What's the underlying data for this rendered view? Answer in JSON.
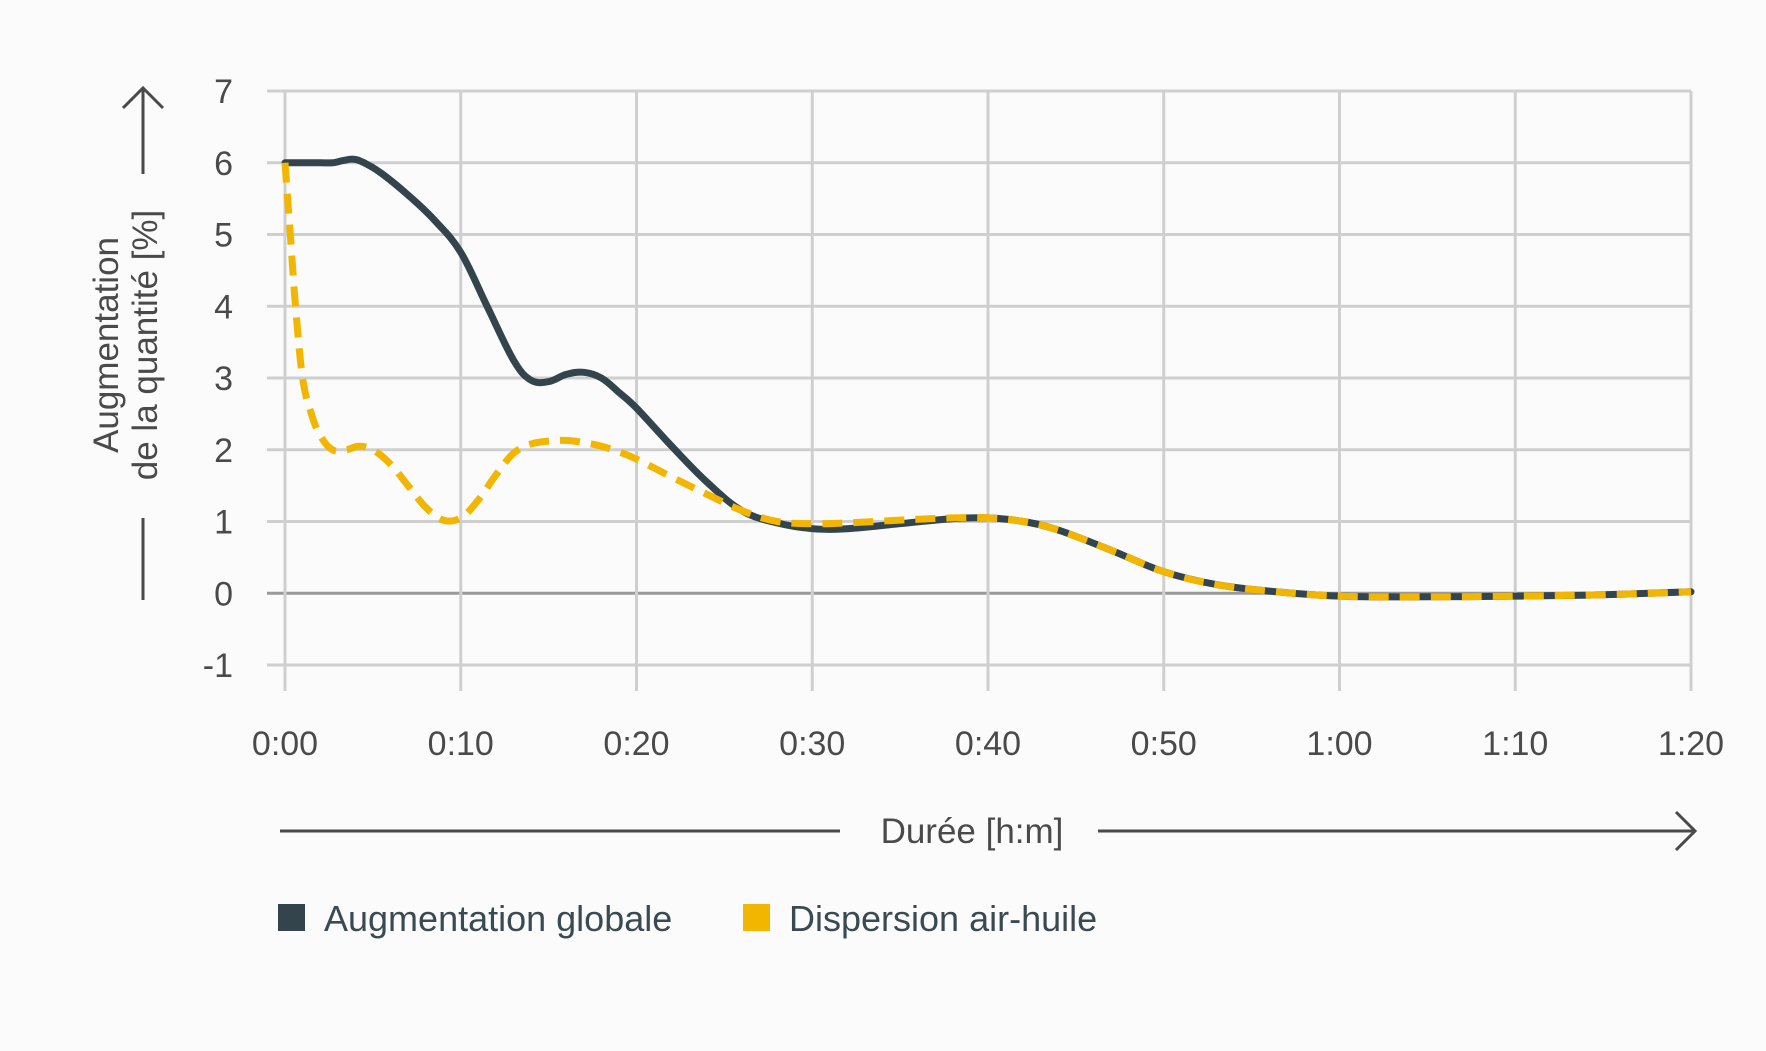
{
  "chart_data": {
    "type": "line",
    "xlabel": "Durée [h:m]",
    "ylabel_line1": "Augmentation",
    "ylabel_line2": "de la quantité [%]",
    "x_ticks": [
      "0:00",
      "0:10",
      "0:20",
      "0:30",
      "0:40",
      "0:50",
      "1:00",
      "1:10",
      "1:20"
    ],
    "y_ticks": [
      "7",
      "6",
      "5",
      "4",
      "3",
      "2",
      "1",
      "0",
      "-1"
    ],
    "xlim_minutes": [
      0,
      80
    ],
    "ylim": [
      -1,
      7
    ],
    "grid": true,
    "legend_position": "bottom-left",
    "series": [
      {
        "name": "Augmentation globale",
        "color": "#33444d",
        "style": "solid",
        "x_minutes": [
          0,
          1,
          2,
          2.7,
          3.3,
          3.9,
          4.5,
          5.5,
          7,
          8.5,
          10,
          11.5,
          13,
          14,
          15,
          16,
          17,
          18,
          19,
          20,
          22,
          24,
          26,
          28,
          30,
          32,
          35,
          38,
          40,
          42,
          44,
          47,
          50,
          53,
          56,
          60,
          65,
          70,
          75,
          80
        ],
        "values": [
          6.0,
          6.0,
          6.0,
          6.0,
          6.03,
          6.05,
          6.0,
          5.85,
          5.55,
          5.2,
          4.75,
          4.0,
          3.25,
          2.97,
          2.95,
          3.05,
          3.08,
          3.0,
          2.8,
          2.58,
          2.05,
          1.55,
          1.15,
          0.98,
          0.9,
          0.9,
          0.97,
          1.04,
          1.05,
          1.0,
          0.88,
          0.6,
          0.3,
          0.12,
          0.03,
          -0.04,
          -0.05,
          -0.04,
          -0.02,
          0.02
        ]
      },
      {
        "name": "Dispersion air-huile",
        "color": "#f3b600",
        "style": "dashed",
        "x_minutes": [
          0,
          0.3,
          0.6,
          1,
          1.5,
          2,
          2.7,
          3.5,
          4.2,
          5,
          6,
          7,
          8,
          9,
          10,
          11,
          12,
          13,
          14,
          15,
          16,
          17,
          18,
          19,
          20,
          22,
          24,
          26,
          28,
          30,
          32,
          35,
          38,
          40,
          42,
          44,
          47,
          50,
          53,
          56,
          60,
          65,
          70,
          75,
          80
        ],
        "values": [
          6.0,
          5.0,
          4.0,
          3.0,
          2.5,
          2.2,
          2.0,
          2.0,
          2.05,
          2.0,
          1.8,
          1.5,
          1.2,
          1.02,
          1.05,
          1.3,
          1.65,
          1.95,
          2.08,
          2.12,
          2.13,
          2.1,
          2.05,
          1.97,
          1.87,
          1.62,
          1.38,
          1.15,
          1.0,
          0.97,
          0.98,
          1.02,
          1.05,
          1.05,
          1.0,
          0.88,
          0.6,
          0.3,
          0.12,
          0.03,
          -0.04,
          -0.05,
          -0.04,
          -0.02,
          0.02
        ]
      }
    ]
  }
}
